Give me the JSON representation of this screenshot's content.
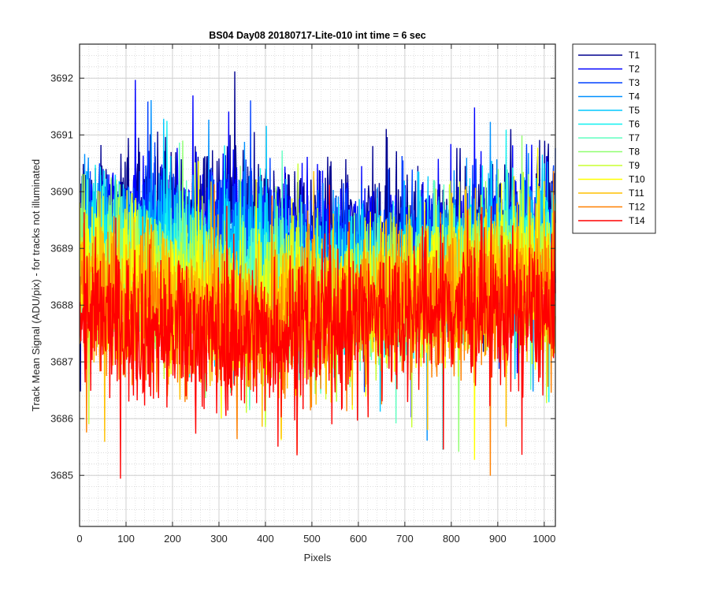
{
  "chart_data": {
    "type": "line",
    "title": "BS04 Day08 20180717-Lite-010 int time = 6 sec",
    "xlabel": "Pixels",
    "ylabel": "Track Mean Signal (ADU/pix) - for tracks not illuminated",
    "xlim": [
      0,
      1024
    ],
    "ylim": [
      3684.1,
      3692.6
    ],
    "xticks": [
      0,
      100,
      200,
      300,
      400,
      500,
      600,
      700,
      800,
      900,
      1000
    ],
    "yticks": [
      3685,
      3686,
      3687,
      3688,
      3689,
      3690,
      3691,
      3692
    ],
    "grid": true,
    "minor_grid": true,
    "legend_position": "outside-top-right",
    "series": [
      {
        "name": "T1",
        "color": "#00008f",
        "mean": 3689.5,
        "spread": 0.75
      },
      {
        "name": "T2",
        "color": "#0000ff",
        "mean": 3689.3,
        "spread": 0.8
      },
      {
        "name": "T3",
        "color": "#0040ff",
        "mean": 3689.1,
        "spread": 0.8
      },
      {
        "name": "T4",
        "color": "#0090ff",
        "mean": 3688.9,
        "spread": 0.85
      },
      {
        "name": "T5",
        "color": "#00c8ff",
        "mean": 3688.8,
        "spread": 0.85
      },
      {
        "name": "T6",
        "color": "#10f0f0",
        "mean": 3688.6,
        "spread": 0.85
      },
      {
        "name": "T7",
        "color": "#60ffc0",
        "mean": 3688.5,
        "spread": 0.85
      },
      {
        "name": "T8",
        "color": "#90ff70",
        "mean": 3688.4,
        "spread": 0.85
      },
      {
        "name": "T9",
        "color": "#c8ff30",
        "mean": 3688.3,
        "spread": 0.9
      },
      {
        "name": "T10",
        "color": "#ffff00",
        "mean": 3688.2,
        "spread": 0.9
      },
      {
        "name": "T11",
        "color": "#ffc000",
        "mean": 3688.1,
        "spread": 0.9
      },
      {
        "name": "T12",
        "color": "#ff8000",
        "mean": 3687.9,
        "spread": 0.9
      },
      {
        "name": "T14",
        "color": "#ff0000",
        "mean": 3687.7,
        "spread": 0.95
      }
    ]
  }
}
